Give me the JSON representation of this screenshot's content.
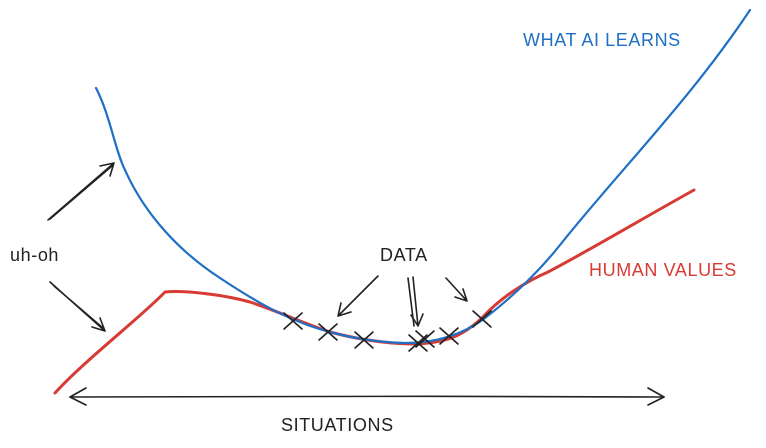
{
  "labels": {
    "learned_curve": "WHAT AI LEARNS",
    "true_curve": "HUMAN VALUES",
    "data": "DATA",
    "warning": "uh-oh",
    "x_axis": "SITUATIONS"
  },
  "colors": {
    "learned_curve": "#1f6fc5",
    "true_curve": "#d83a34",
    "ink": "#222222"
  },
  "data_point_count": 7
}
